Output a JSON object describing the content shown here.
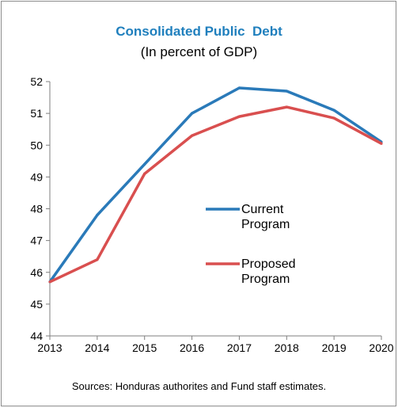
{
  "chart_data": {
    "type": "line",
    "title": "Consolidated Public  Debt",
    "subtitle": "(In percent of GDP)",
    "source": "Sources: Honduras authorites and Fund staff estimates.",
    "x": [
      2013,
      2014,
      2015,
      2016,
      2017,
      2018,
      2019,
      2020
    ],
    "xticks": [
      "2013",
      "2014",
      "2015",
      "2016",
      "2017",
      "2018",
      "2019",
      "2020"
    ],
    "yticks": [
      "44",
      "45",
      "46",
      "47",
      "48",
      "49",
      "50",
      "51",
      "52"
    ],
    "ylim": [
      44,
      52
    ],
    "xlim": [
      2013,
      2020
    ],
    "grid": false,
    "legend_position": "center-right",
    "series": [
      {
        "name_lines": [
          "Current",
          "Program"
        ],
        "color": "#2a7ab9",
        "values": [
          45.7,
          47.8,
          49.4,
          51.0,
          51.8,
          51.7,
          51.1,
          50.1
        ]
      },
      {
        "name_lines": [
          "Proposed",
          "Program"
        ],
        "color": "#d94f4f",
        "values": [
          45.7,
          46.4,
          49.1,
          50.3,
          50.9,
          51.2,
          50.85,
          50.05
        ]
      }
    ]
  }
}
